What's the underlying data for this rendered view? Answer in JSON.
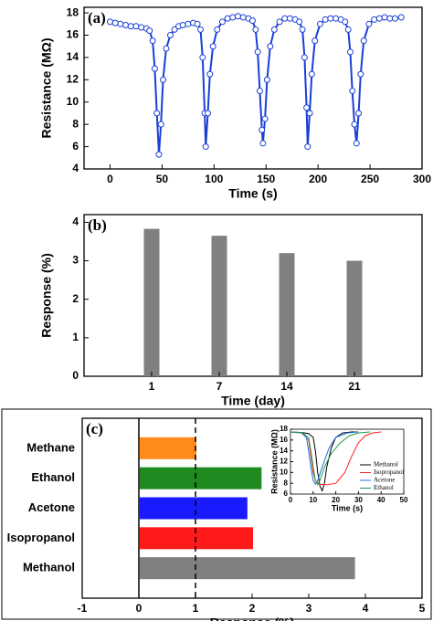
{
  "chart_data": [
    {
      "type": "line",
      "label": "(a)",
      "xlabel": "Time (s)",
      "ylabel": "Resistance (MΩ)",
      "xlim": [
        -25,
        300
      ],
      "xticks": [
        0,
        50,
        100,
        150,
        200,
        250,
        300
      ],
      "ylim": [
        4,
        18.5
      ],
      "yticks": [
        4,
        6,
        8,
        10,
        12,
        14,
        16,
        18
      ],
      "color": "#1a3fd6",
      "x": [
        0,
        5,
        10,
        15,
        20,
        25,
        30,
        35,
        38,
        41,
        43,
        45,
        47,
        49,
        51,
        54,
        58,
        62,
        66,
        70,
        75,
        80,
        84,
        87,
        89,
        91,
        92,
        94,
        96,
        99,
        103,
        108,
        113,
        118,
        123,
        128,
        133,
        137,
        140,
        142,
        144,
        146,
        147,
        149,
        151,
        154,
        158,
        163,
        168,
        173,
        178,
        182,
        185,
        187,
        189,
        190,
        192,
        194,
        197,
        202,
        207,
        212,
        217,
        222,
        226,
        229,
        231,
        233,
        235,
        237,
        239,
        241,
        244,
        249,
        254,
        259,
        264,
        269,
        274,
        280
      ],
      "values": [
        17.2,
        17.1,
        17.0,
        16.9,
        16.8,
        16.8,
        16.7,
        16.6,
        16.4,
        15.5,
        13,
        9,
        5.3,
        8,
        12,
        14.8,
        16,
        16.5,
        16.8,
        16.9,
        17.0,
        17.1,
        17.0,
        16.5,
        14,
        9,
        6.0,
        9,
        12.5,
        15,
        16.5,
        17.2,
        17.5,
        17.6,
        17.7,
        17.6,
        17.5,
        17.3,
        16.5,
        14.5,
        11,
        7.5,
        6.3,
        8.5,
        12,
        15,
        16.5,
        17.2,
        17.5,
        17.5,
        17.4,
        17.2,
        16.5,
        14,
        9.5,
        6.0,
        9,
        12.5,
        15.5,
        17,
        17.4,
        17.5,
        17.5,
        17.4,
        17.2,
        16.5,
        14.5,
        11,
        8,
        6.3,
        9,
        12.5,
        15.5,
        17,
        17.4,
        17.5,
        17.6,
        17.5,
        17.5,
        17.6
      ]
    },
    {
      "type": "bar",
      "label": "(b)",
      "xlabel": "Time (day)",
      "ylabel": "Response (%)",
      "categories": [
        "1",
        "7",
        "14",
        "21"
      ],
      "values": [
        3.83,
        3.65,
        3.2,
        3.0
      ],
      "color": "#808080",
      "ylim": [
        0,
        4.2
      ],
      "yticks": [
        0,
        1,
        2,
        3,
        4
      ]
    },
    {
      "type": "bar",
      "horizontal": true,
      "label": "(c)",
      "xlabel": "Response (%)",
      "categories": [
        "Methane",
        "Ethanol",
        "Acetone",
        "Isopropanol",
        "Methanol"
      ],
      "values": [
        1.0,
        2.15,
        1.9,
        2.0,
        3.8
      ],
      "colors": [
        "#ff8c1a",
        "#1f8a1f",
        "#1a1aff",
        "#ff1a1a",
        "#808080"
      ],
      "xlim": [
        -1,
        5
      ],
      "xticks": [
        -1,
        0,
        1,
        2,
        3,
        4,
        5
      ],
      "ref_line": 1
    },
    {
      "type": "line",
      "xlabel": "Time (s)",
      "ylabel": "Resistance (MΩ)",
      "xlim": [
        0,
        50
      ],
      "xticks": [
        0,
        10,
        20,
        30,
        40,
        50
      ],
      "ylim": [
        6,
        18
      ],
      "yticks": [
        6,
        8,
        10,
        12,
        14,
        16,
        18
      ],
      "series": [
        {
          "name": "Methanol",
          "color": "#000000",
          "x": [
            0,
            5,
            8,
            10,
            11,
            12,
            13,
            14,
            15,
            16,
            18,
            20,
            23,
            27,
            30
          ],
          "values": [
            17.5,
            17.4,
            17.2,
            16.5,
            14,
            10,
            7.5,
            6.6,
            8,
            11,
            14.5,
            16.5,
            17.3,
            17.5,
            17.5
          ]
        },
        {
          "name": "Isopropanol",
          "color": "#ff2020",
          "x": [
            0,
            5,
            8,
            9,
            10,
            11,
            13,
            16,
            20,
            24,
            27,
            30,
            33,
            36,
            40
          ],
          "values": [
            17.5,
            17.3,
            16,
            13,
            10,
            8.5,
            7.8,
            7.7,
            8,
            10,
            13,
            15.5,
            16.8,
            17.3,
            17.5
          ]
        },
        {
          "name": "Acetone",
          "color": "#1f6fe0",
          "x": [
            0,
            5,
            7,
            8,
            9,
            10,
            11,
            12,
            14,
            17,
            20,
            25,
            30
          ],
          "values": [
            17.5,
            17.3,
            16.5,
            14,
            11,
            8.5,
            7.8,
            8.5,
            11,
            14.5,
            16.5,
            17.3,
            17.5
          ]
        },
        {
          "name": "Ethanol",
          "color": "#1f9a4a",
          "x": [
            0,
            5,
            8,
            9,
            10,
            11,
            12,
            13,
            15,
            18,
            22,
            26,
            30,
            35
          ],
          "values": [
            17.5,
            17.4,
            16.5,
            14,
            11,
            8.5,
            7.7,
            8.5,
            11,
            13.5,
            15.5,
            16.8,
            17.3,
            17.5
          ]
        }
      ]
    }
  ]
}
